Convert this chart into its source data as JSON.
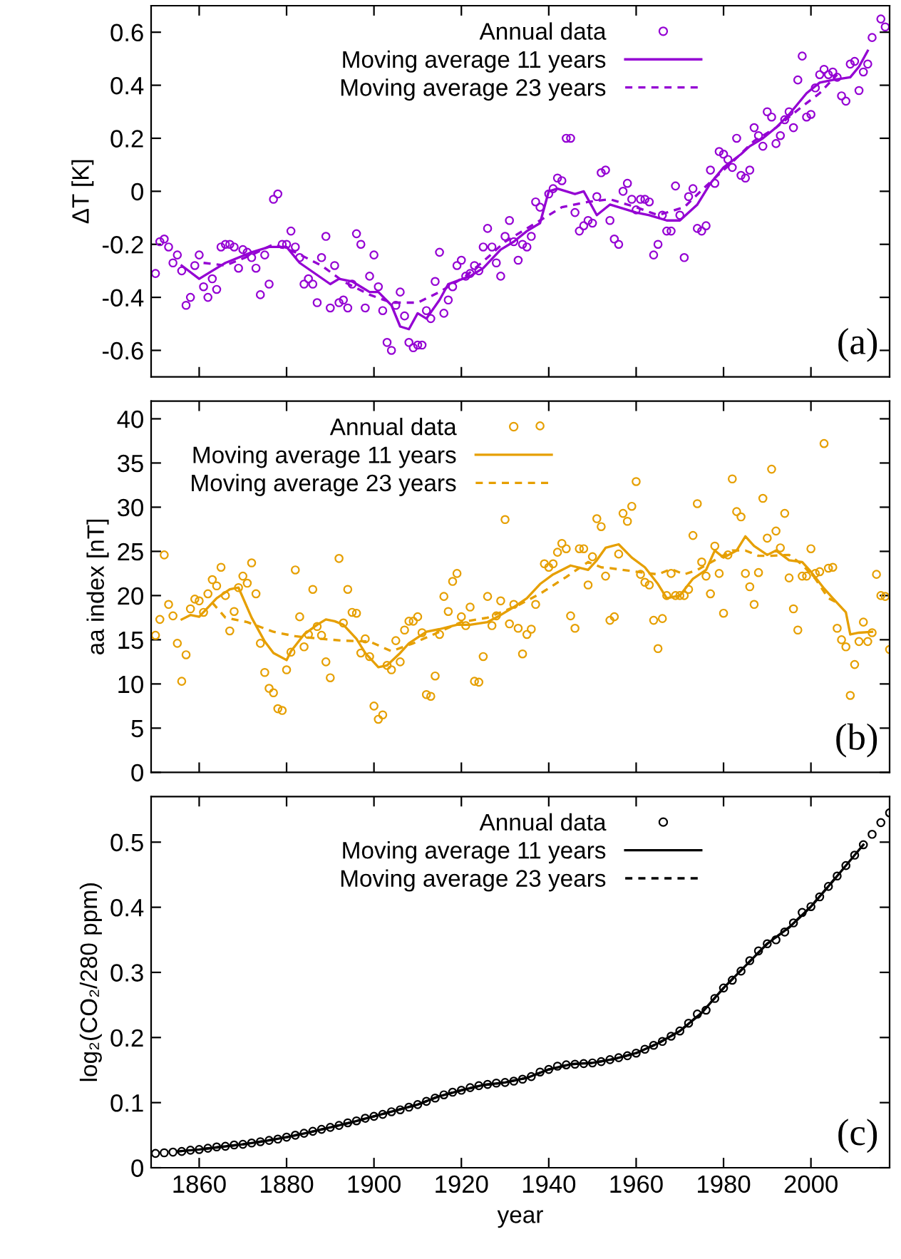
{
  "chart_data": [
    {
      "type": "line",
      "ylabel": "ΔT [K]",
      "xlim": [
        1849,
        2018
      ],
      "xticks": [
        1860,
        1880,
        1900,
        1920,
        1940,
        1960,
        1980,
        2000
      ],
      "ylim": [
        -0.7,
        0.7
      ],
      "yticks": [
        -0.6,
        -0.4,
        -0.2,
        0,
        0.2,
        0.4,
        0.6
      ],
      "tick_labels": "y",
      "legend": "top",
      "annotations": [
        "(a)"
      ],
      "series": [
        {
          "name": "Annual data",
          "type": "scatter",
          "marker": "circle",
          "color": "#9400d3",
          "x": [
            1850,
            1851,
            1852,
            1853,
            1854,
            1855,
            1856,
            1857,
            1858,
            1859,
            1860,
            1861,
            1862,
            1863,
            1864,
            1865,
            1866,
            1867,
            1868,
            1869,
            1870,
            1871,
            1872,
            1873,
            1874,
            1875,
            1876,
            1877,
            1878,
            1879,
            1880,
            1881,
            1882,
            1883,
            1884,
            1885,
            1886,
            1887,
            1888,
            1889,
            1890,
            1891,
            1892,
            1893,
            1894,
            1895,
            1896,
            1897,
            1898,
            1899,
            1900,
            1901,
            1902,
            1903,
            1904,
            1905,
            1906,
            1907,
            1908,
            1909,
            1910,
            1911,
            1912,
            1913,
            1914,
            1915,
            1916,
            1917,
            1918,
            1919,
            1920,
            1921,
            1922,
            1923,
            1924,
            1925,
            1926,
            1927,
            1928,
            1929,
            1930,
            1931,
            1932,
            1933,
            1934,
            1935,
            1936,
            1937,
            1938,
            1940,
            1941,
            1942,
            1943,
            1944,
            1945,
            1946,
            1947,
            1948,
            1949,
            1950,
            1951,
            1952,
            1953,
            1954,
            1955,
            1956,
            1957,
            1958,
            1959,
            1960,
            1961,
            1962,
            1963,
            1964,
            1965,
            1966,
            1967,
            1968,
            1969,
            1970,
            1971,
            1972,
            1973,
            1974,
            1975,
            1976,
            1977,
            1978,
            1979,
            1980,
            1981,
            1982,
            1983,
            1984,
            1985,
            1986,
            1987,
            1988,
            1989,
            1990,
            1991,
            1992,
            1993,
            1994,
            1995,
            1996,
            1997,
            1998,
            1999,
            2000,
            2001,
            2002,
            2003,
            2004,
            2005,
            2006,
            2007,
            2008,
            2009,
            2010,
            2011,
            2012,
            2013,
            2014,
            2016,
            2017
          ],
          "values": [
            -0.31,
            -0.19,
            -0.18,
            -0.21,
            -0.27,
            -0.24,
            -0.3,
            -0.43,
            -0.4,
            -0.28,
            -0.24,
            -0.36,
            -0.4,
            -0.33,
            -0.37,
            -0.21,
            -0.2,
            -0.2,
            -0.21,
            -0.29,
            -0.22,
            -0.23,
            -0.25,
            -0.29,
            -0.39,
            -0.24,
            -0.35,
            -0.03,
            -0.01,
            -0.2,
            -0.2,
            -0.15,
            -0.21,
            -0.25,
            -0.35,
            -0.33,
            -0.35,
            -0.42,
            -0.25,
            -0.17,
            -0.44,
            -0.28,
            -0.42,
            -0.41,
            -0.44,
            -0.35,
            -0.16,
            -0.2,
            -0.44,
            -0.32,
            -0.24,
            -0.36,
            -0.45,
            -0.57,
            -0.6,
            -0.43,
            -0.38,
            -0.47,
            -0.57,
            -0.59,
            -0.58,
            -0.58,
            -0.45,
            -0.48,
            -0.34,
            -0.23,
            -0.46,
            -0.41,
            -0.36,
            -0.28,
            -0.26,
            -0.32,
            -0.31,
            -0.28,
            -0.3,
            -0.21,
            -0.14,
            -0.21,
            -0.27,
            -0.32,
            -0.17,
            -0.11,
            -0.19,
            -0.26,
            -0.2,
            -0.21,
            -0.17,
            -0.04,
            -0.06,
            -0.01,
            0.01,
            0.05,
            0.04,
            0.2,
            0.2,
            -0.08,
            -0.15,
            -0.13,
            -0.11,
            -0.12,
            -0.02,
            0.07,
            0.08,
            -0.11,
            -0.18,
            -0.2,
            0.0,
            0.03,
            -0.03,
            -0.07,
            -0.03,
            -0.03,
            -0.04,
            -0.24,
            -0.2,
            -0.09,
            -0.15,
            -0.15,
            0.02,
            -0.09,
            -0.25,
            -0.02,
            0.01,
            -0.14,
            -0.15,
            -0.13,
            0.08,
            0.03,
            0.15,
            0.14,
            0.12,
            0.09,
            0.2,
            0.06,
            0.05,
            0.08,
            0.24,
            0.21,
            0.17,
            0.3,
            0.28,
            0.18,
            0.21,
            0.27,
            0.3,
            0.24,
            0.42,
            0.51,
            0.28,
            0.29,
            0.39,
            0.44,
            0.46,
            0.44,
            0.45,
            0.43,
            0.36,
            0.34,
            0.48,
            0.49,
            0.38,
            0.45,
            0.48,
            0.58,
            0.65,
            0.62
          ]
        },
        {
          "name": "Moving average 11 years",
          "type": "line",
          "line_style": "solid",
          "color": "#9400d3",
          "x": [
            1856,
            1860,
            1863,
            1866,
            1872,
            1876,
            1880,
            1883,
            1890,
            1892,
            1895,
            1899,
            1901,
            1904,
            1906,
            1908,
            1910,
            1912,
            1915,
            1917,
            1922,
            1925,
            1929,
            1932,
            1935,
            1938,
            1940,
            1942,
            1946,
            1948,
            1951,
            1954,
            1956,
            1960,
            1963,
            1967,
            1970,
            1974,
            1977,
            1980,
            1984,
            1986,
            1989,
            1992,
            1995,
            1999,
            2002,
            2005,
            2009,
            2011,
            2013
          ],
          "values": [
            -0.28,
            -0.33,
            -0.3,
            -0.27,
            -0.23,
            -0.21,
            -0.21,
            -0.27,
            -0.35,
            -0.33,
            -0.34,
            -0.38,
            -0.38,
            -0.43,
            -0.51,
            -0.52,
            -0.46,
            -0.48,
            -0.41,
            -0.35,
            -0.32,
            -0.29,
            -0.22,
            -0.19,
            -0.15,
            -0.12,
            0.0,
            0.01,
            -0.01,
            0.0,
            -0.09,
            -0.05,
            -0.06,
            -0.08,
            -0.09,
            -0.11,
            -0.11,
            -0.05,
            0.03,
            0.09,
            0.14,
            0.17,
            0.2,
            0.24,
            0.29,
            0.37,
            0.41,
            0.42,
            0.43,
            0.47,
            0.53
          ]
        },
        {
          "name": "Moving average 23 years",
          "type": "line",
          "line_style": "dashed",
          "color": "#9400d3",
          "x": [
            1861,
            1866,
            1872,
            1877,
            1882,
            1888,
            1893,
            1899,
            1904,
            1910,
            1915,
            1921,
            1926,
            1930,
            1934,
            1938,
            1943,
            1949,
            1954,
            1960,
            1965,
            1971,
            1976,
            1982,
            1987,
            1992,
            1998,
            2002,
            2006
          ],
          "values": [
            -0.27,
            -0.28,
            -0.24,
            -0.2,
            -0.23,
            -0.28,
            -0.34,
            -0.39,
            -0.42,
            -0.42,
            -0.38,
            -0.32,
            -0.25,
            -0.19,
            -0.15,
            -0.11,
            -0.06,
            -0.04,
            -0.03,
            -0.06,
            -0.09,
            -0.06,
            0.02,
            0.11,
            0.19,
            0.24,
            0.32,
            0.37,
            0.44
          ]
        }
      ]
    },
    {
      "type": "line",
      "ylabel": "aa index [nT]",
      "xlim": [
        1849,
        2018
      ],
      "xticks": [
        1860,
        1880,
        1900,
        1920,
        1940,
        1960,
        1980,
        2000
      ],
      "ylim": [
        0,
        42
      ],
      "yticks": [
        0,
        5,
        10,
        15,
        20,
        25,
        30,
        35,
        40
      ],
      "tick_labels": "y",
      "legend": "top left",
      "annotations": [
        "(b)"
      ],
      "series": [
        {
          "name": "Annual data",
          "type": "scatter",
          "marker": "circle",
          "color": "#e69f00",
          "x": [
            1850,
            1851,
            1852,
            1853,
            1854,
            1855,
            1856,
            1857,
            1858,
            1859,
            1860,
            1861,
            1862,
            1863,
            1864,
            1865,
            1866,
            1867,
            1868,
            1869,
            1870,
            1871,
            1872,
            1873,
            1874,
            1875,
            1876,
            1877,
            1878,
            1879,
            1880,
            1881,
            1882,
            1883,
            1884,
            1885,
            1886,
            1887,
            1888,
            1889,
            1890,
            1892,
            1893,
            1894,
            1895,
            1896,
            1897,
            1898,
            1899,
            1900,
            1901,
            1902,
            1903,
            1904,
            1905,
            1906,
            1907,
            1908,
            1909,
            1910,
            1911,
            1912,
            1913,
            1914,
            1915,
            1916,
            1917,
            1918,
            1919,
            1920,
            1921,
            1922,
            1923,
            1924,
            1925,
            1926,
            1927,
            1928,
            1929,
            1930,
            1931,
            1932,
            1933,
            1934,
            1935,
            1936,
            1937,
            1938,
            1939,
            1940,
            1941,
            1942,
            1943,
            1944,
            1945,
            1946,
            1947,
            1948,
            1949,
            1950,
            1951,
            1952,
            1953,
            1954,
            1955,
            1956,
            1957,
            1958,
            1959,
            1960,
            1961,
            1962,
            1963,
            1964,
            1965,
            1966,
            1967,
            1968,
            1969,
            1970,
            1971,
            1972,
            1973,
            1974,
            1975,
            1976,
            1977,
            1978,
            1979,
            1980,
            1981,
            1982,
            1983,
            1984,
            1985,
            1986,
            1987,
            1988,
            1989,
            1990,
            1991,
            1992,
            1993,
            1994,
            1995,
            1996,
            1997,
            1998,
            1999,
            2000,
            2001,
            2002,
            2003,
            2004,
            2005,
            2006,
            2007,
            2008,
            2009,
            2010,
            2011,
            2012,
            2013,
            2014,
            2015,
            2016,
            2017,
            2018
          ],
          "values": [
            15.5,
            17.3,
            24.6,
            19.0,
            17.7,
            14.6,
            10.3,
            13.3,
            18.5,
            19.6,
            19.4,
            18.1,
            20.2,
            21.8,
            21.1,
            23.2,
            20.0,
            16.0,
            18.2,
            20.9,
            22.2,
            21.4,
            23.7,
            20.2,
            14.6,
            11.3,
            9.5,
            9.0,
            7.2,
            7.0,
            11.6,
            13.6,
            22.9,
            17.6,
            14.2,
            15.6,
            20.7,
            16.5,
            15.5,
            12.5,
            10.7,
            24.2,
            16.9,
            20.7,
            18.1,
            18.0,
            13.5,
            15.1,
            13.1,
            7.5,
            6.0,
            6.5,
            12.1,
            11.6,
            14.9,
            12.5,
            16.1,
            17.1,
            17.1,
            17.6,
            15.8,
            8.8,
            8.6,
            10.9,
            15.6,
            19.9,
            18.2,
            21.6,
            22.5,
            17.6,
            16.6,
            18.7,
            10.3,
            10.2,
            13.1,
            19.9,
            16.6,
            17.7,
            19.4,
            28.6,
            16.8,
            19.0,
            16.3,
            13.4,
            15.6,
            16.2,
            19.0,
            39.2,
            23.6,
            23.2,
            23.6,
            24.9,
            25.9,
            25.3,
            17.7,
            16.3,
            25.3,
            25.3,
            21.2,
            24.4,
            28.7,
            27.8,
            22.2,
            17.2,
            17.6,
            24.7,
            29.3,
            28.4,
            30.1,
            32.9,
            22.4,
            21.5,
            21.2,
            17.2,
            14.0,
            17.4,
            20.0,
            22.5,
            20.0,
            20.0,
            20.0,
            20.7,
            26.8,
            30.4,
            23.8,
            22.2,
            20.2,
            25.6,
            22.5,
            18.0,
            24.6,
            33.2,
            29.5,
            28.9,
            22.5,
            21.0,
            19.0,
            22.6,
            31.0,
            26.5,
            34.3,
            27.3,
            25.4,
            29.3,
            22.0,
            18.5,
            16.1,
            22.2,
            22.2,
            25.3,
            22.5,
            22.7,
            37.2,
            23.1,
            23.2,
            16.3,
            15.0,
            14.2,
            8.7,
            12.2,
            14.8,
            17.0,
            14.8,
            15.8,
            22.4,
            20.0,
            19.9,
            13.9
          ]
        },
        {
          "name": "Moving average 11 years",
          "type": "line",
          "line_style": "solid",
          "color": "#e69f00",
          "x": [
            1856,
            1858,
            1860,
            1864,
            1867,
            1869,
            1872,
            1875,
            1877,
            1880,
            1881,
            1884,
            1887,
            1889,
            1891,
            1893,
            1896,
            1898,
            1901,
            1903,
            1906,
            1908,
            1912,
            1915,
            1919,
            1922,
            1926,
            1929,
            1932,
            1935,
            1938,
            1941,
            1945,
            1949,
            1951,
            1953,
            1956,
            1959,
            1962,
            1965,
            1967,
            1970,
            1973,
            1976,
            1978,
            1980,
            1983,
            1985,
            1987,
            1990,
            1992,
            1995,
            1998,
            2000,
            2003,
            2005,
            2008,
            2009,
            2011,
            2014
          ],
          "values": [
            17.3,
            17.8,
            17.6,
            19.7,
            20.7,
            20.9,
            17.5,
            14.8,
            13.5,
            12.7,
            13.7,
            15.6,
            16.7,
            17.3,
            17.1,
            16.7,
            15.1,
            13.5,
            11.9,
            12.1,
            13.5,
            14.6,
            15.9,
            16.2,
            16.7,
            16.7,
            17.0,
            17.8,
            18.7,
            19.7,
            21.3,
            22.4,
            23.4,
            22.9,
            24.0,
            25.4,
            25.8,
            24.3,
            23.2,
            21.3,
            19.7,
            20.0,
            21.9,
            22.9,
            25.1,
            24.3,
            25.1,
            26.7,
            25.6,
            24.6,
            25.1,
            24.0,
            23.8,
            22.7,
            20.8,
            19.7,
            18.1,
            15.6,
            15.8,
            15.9
          ]
        },
        {
          "name": "Moving average 23 years",
          "type": "line",
          "line_style": "dashed",
          "color": "#e69f00",
          "x": [
            1863,
            1866,
            1871,
            1877,
            1882,
            1888,
            1893,
            1899,
            1904,
            1909,
            1915,
            1920,
            1926,
            1930,
            1933,
            1938,
            1944,
            1949,
            1952,
            1954,
            1960,
            1965,
            1968,
            1971,
            1974,
            1978,
            1982,
            1985,
            1988,
            1991,
            1995,
            1998,
            2001,
            2004,
            2006
          ],
          "values": [
            19.2,
            17.5,
            17.0,
            15.9,
            15.4,
            15.1,
            14.9,
            14.8,
            13.7,
            14.6,
            15.9,
            17.0,
            17.5,
            18.3,
            18.9,
            20.2,
            22.1,
            23.8,
            23.2,
            23.1,
            22.7,
            22.4,
            23.0,
            22.4,
            22.9,
            24.0,
            25.1,
            25.1,
            24.5,
            24.5,
            24.6,
            23.5,
            21.9,
            19.7,
            19.2
          ]
        }
      ]
    },
    {
      "type": "line",
      "ylabel": "log₂(CO₂/280 ppm)",
      "xlabel": "year",
      "xlim": [
        1849,
        2018
      ],
      "xticks": [
        1860,
        1880,
        1900,
        1920,
        1940,
        1960,
        1980,
        2000
      ],
      "ylim": [
        0,
        0.57
      ],
      "yticks": [
        0,
        0.1,
        0.2,
        0.3,
        0.4,
        0.5
      ],
      "legend": "top",
      "annotations": [
        "(c)"
      ],
      "series": [
        {
          "name": "Annual data",
          "type": "scatter",
          "marker": "circle",
          "color": "#000000",
          "x": [
            1850,
            1852,
            1854,
            1856,
            1858,
            1860,
            1862,
            1864,
            1866,
            1868,
            1870,
            1872,
            1874,
            1876,
            1878,
            1880,
            1882,
            1884,
            1886,
            1888,
            1890,
            1892,
            1894,
            1896,
            1898,
            1900,
            1902,
            1904,
            1906,
            1908,
            1910,
            1912,
            1914,
            1916,
            1918,
            1920,
            1922,
            1924,
            1926,
            1928,
            1930,
            1932,
            1934,
            1936,
            1938,
            1940,
            1942,
            1944,
            1946,
            1948,
            1950,
            1952,
            1954,
            1956,
            1958,
            1960,
            1962,
            1964,
            1966,
            1968,
            1970,
            1972,
            1974,
            1976,
            1978,
            1980,
            1982,
            1984,
            1986,
            1988,
            1990,
            1992,
            1994,
            1996,
            1998,
            2000,
            2002,
            2004,
            2006,
            2008,
            2010,
            2012,
            2014,
            2016,
            2018
          ],
          "values": [
            0.022,
            0.023,
            0.024,
            0.025,
            0.027,
            0.028,
            0.03,
            0.032,
            0.033,
            0.035,
            0.036,
            0.038,
            0.04,
            0.042,
            0.044,
            0.047,
            0.05,
            0.053,
            0.056,
            0.059,
            0.062,
            0.065,
            0.069,
            0.072,
            0.076,
            0.079,
            0.082,
            0.086,
            0.089,
            0.093,
            0.097,
            0.102,
            0.107,
            0.112,
            0.116,
            0.119,
            0.123,
            0.126,
            0.128,
            0.13,
            0.131,
            0.133,
            0.136,
            0.14,
            0.147,
            0.151,
            0.156,
            0.158,
            0.159,
            0.16,
            0.161,
            0.163,
            0.166,
            0.169,
            0.172,
            0.176,
            0.182,
            0.188,
            0.194,
            0.202,
            0.21,
            0.222,
            0.236,
            0.242,
            0.26,
            0.276,
            0.288,
            0.302,
            0.318,
            0.333,
            0.344,
            0.35,
            0.362,
            0.376,
            0.392,
            0.401,
            0.416,
            0.432,
            0.448,
            0.464,
            0.48,
            0.496,
            0.512,
            0.53,
            0.545
          ]
        },
        {
          "name": "Moving average 11 years",
          "type": "line",
          "line_style": "solid",
          "color": "#000000",
          "x": [
            1855,
            1860,
            1865,
            1870,
            1875,
            1880,
            1885,
            1890,
            1895,
            1900,
            1905,
            1910,
            1915,
            1920,
            1925,
            1930,
            1935,
            1940,
            1945,
            1950,
            1955,
            1960,
            1965,
            1970,
            1975,
            1980,
            1985,
            1990,
            1995,
            2000,
            2005,
            2010,
            2012
          ],
          "values": [
            0.025,
            0.028,
            0.032,
            0.036,
            0.041,
            0.047,
            0.054,
            0.062,
            0.07,
            0.079,
            0.088,
            0.097,
            0.11,
            0.119,
            0.127,
            0.131,
            0.138,
            0.151,
            0.159,
            0.161,
            0.167,
            0.176,
            0.191,
            0.21,
            0.238,
            0.276,
            0.31,
            0.344,
            0.369,
            0.401,
            0.44,
            0.48,
            0.496
          ]
        },
        {
          "name": "Moving average 23 years",
          "type": "line",
          "line_style": "dashed",
          "color": "#000000",
          "x": [
            1861,
            1865,
            1870,
            1875,
            1880,
            1885,
            1890,
            1895,
            1900,
            1905,
            1910,
            1915,
            1920,
            1925,
            1930,
            1935,
            1940,
            1945,
            1950,
            1955,
            1960,
            1965,
            1970,
            1975,
            1980,
            1985,
            1990,
            1995,
            2000,
            2006
          ],
          "values": [
            0.029,
            0.032,
            0.036,
            0.041,
            0.047,
            0.054,
            0.062,
            0.07,
            0.079,
            0.088,
            0.097,
            0.11,
            0.119,
            0.127,
            0.131,
            0.138,
            0.151,
            0.159,
            0.161,
            0.167,
            0.176,
            0.191,
            0.21,
            0.238,
            0.276,
            0.31,
            0.344,
            0.369,
            0.401,
            0.448
          ]
        }
      ]
    }
  ]
}
